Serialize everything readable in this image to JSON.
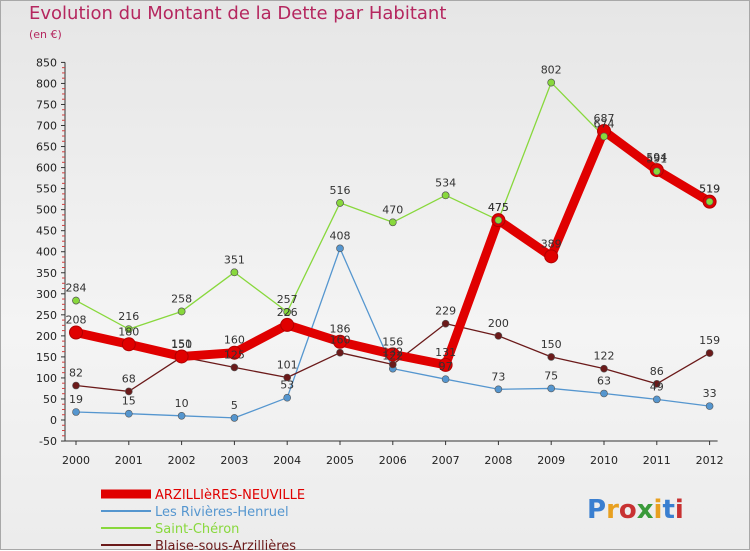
{
  "chart_data": {
    "type": "line",
    "title": "Evolution du Montant de la Dette par Habitant",
    "subtitle": "(en €)",
    "x": [
      "2000",
      "2001",
      "2002",
      "2003",
      "2004",
      "2005",
      "2006",
      "2007",
      "2008",
      "2009",
      "2010",
      "2011",
      "2012"
    ],
    "ylim": [
      -50,
      850
    ],
    "yticks": [
      -50,
      0,
      50,
      100,
      150,
      200,
      250,
      300,
      350,
      400,
      450,
      500,
      550,
      600,
      650,
      700,
      750,
      800,
      850
    ],
    "grid": false,
    "legend_position": "bottom-left",
    "series": [
      {
        "name": "ARZILLIèRES-NEUVILLE",
        "color": "#e00000",
        "values": [
          208,
          180,
          151,
          160,
          226,
          186,
          156,
          131,
          475,
          389,
          687,
          594,
          519
        ]
      },
      {
        "name": "Les Rivières-Henruel",
        "color": "#5596cf",
        "values": [
          19,
          15,
          10,
          5,
          53,
          408,
          122,
          97,
          73,
          75,
          63,
          49,
          33
        ]
      },
      {
        "name": "Saint-Chéron",
        "color": "#88d83c",
        "values": [
          284,
          216,
          258,
          351,
          257,
          516,
          470,
          534,
          475,
          802,
          674,
          591,
          519
        ]
      },
      {
        "name": "Blaise-sous-Arzillières",
        "color": "#6b1a1a",
        "values": [
          82,
          68,
          150,
          125,
          101,
          160,
          132,
          229,
          200,
          150,
          122,
          86,
          159
        ]
      }
    ],
    "labels": [
      [
        "208",
        "180",
        "151",
        "160",
        "226",
        "186",
        "156",
        "131",
        "475",
        "389",
        "687",
        "594",
        "519"
      ],
      [
        "19",
        "15",
        "10",
        "5",
        "53",
        "408",
        "122",
        "97",
        "73",
        "75",
        "63",
        "49",
        "33"
      ],
      [
        "284",
        "216",
        "258",
        "351",
        "257",
        "516",
        "470",
        "534",
        "475",
        "802",
        "674",
        "591",
        "519"
      ],
      [
        "82",
        "68",
        "150",
        "125",
        "101",
        "160",
        "132",
        "229",
        "200",
        "150",
        "122",
        "86",
        "159"
      ]
    ]
  },
  "logo": {
    "letters": [
      "P",
      "r",
      "o",
      "x",
      "i",
      "t",
      "i"
    ],
    "colors": [
      "#3a7fd0",
      "#e8a020",
      "#c83232",
      "#3a9a3a",
      "#e8a020",
      "#3a7fd0",
      "#c83232"
    ]
  }
}
